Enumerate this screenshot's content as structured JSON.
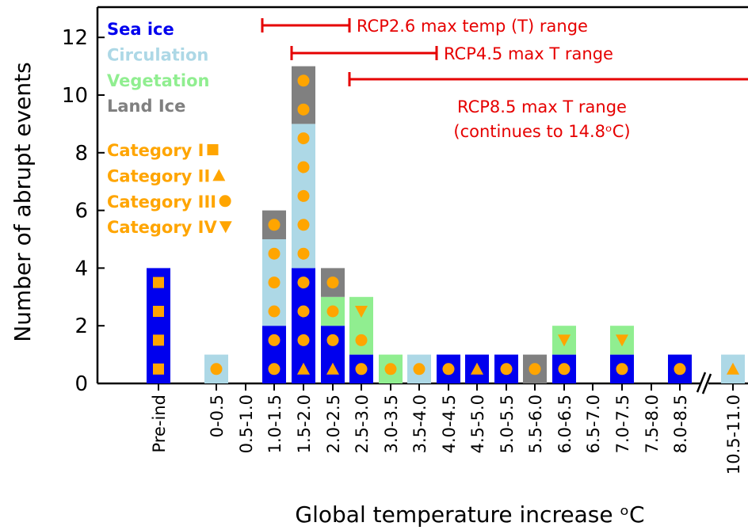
{
  "chart_data": {
    "type": "bar",
    "stacked": true,
    "xlabel": "Global temperature increase ᵒC",
    "ylabel": "Number of abrupt events",
    "ylim": [
      0,
      13
    ],
    "yticks": [
      0,
      2,
      4,
      6,
      8,
      10,
      12
    ],
    "categories": [
      "Pre-ind",
      "0-0.5",
      "0.5-1.0",
      "1.0-1.5",
      "1.5-2.0",
      "2.0-2.5",
      "2.5-3.0",
      "3.0-3.5",
      "3.5-4.0",
      "4.0-4.5",
      "4.5-5.0",
      "5.0-5.5",
      "5.5-6.0",
      "6.0-6.5",
      "6.5-7.0",
      "7.0-7.5",
      "7.5-8.0",
      "8.0-8.5",
      "10.5-11.0"
    ],
    "series": [
      {
        "name": "Sea ice",
        "color": "#0000ee",
        "values": [
          4,
          0,
          0,
          2,
          4,
          2,
          1,
          0,
          0,
          1,
          1,
          1,
          0,
          1,
          0,
          1,
          0,
          1,
          0
        ]
      },
      {
        "name": "Circulation",
        "color": "#add8e6",
        "values": [
          0,
          1,
          0,
          3,
          5,
          0,
          0,
          0,
          1,
          0,
          0,
          0,
          0,
          0,
          0,
          0,
          0,
          0,
          1
        ]
      },
      {
        "name": "Vegetation",
        "color": "#90ee90",
        "values": [
          0,
          0,
          0,
          0,
          0,
          1,
          2,
          1,
          0,
          0,
          0,
          0,
          0,
          1,
          0,
          1,
          0,
          0,
          0
        ]
      },
      {
        "name": "Land Ice",
        "color": "#808080",
        "values": [
          0,
          0,
          0,
          1,
          2,
          1,
          0,
          0,
          0,
          0,
          0,
          0,
          1,
          0,
          0,
          0,
          0,
          0,
          0
        ]
      }
    ],
    "marker_categories": [
      {
        "label": "Category I",
        "symbol": "square"
      },
      {
        "label": "Category II",
        "symbol": "triangle-up"
      },
      {
        "label": "Category III",
        "symbol": "circle"
      },
      {
        "label": "Category IV",
        "symbol": "triangle-down"
      }
    ],
    "markers": [
      [
        "square",
        "square",
        "square",
        "square"
      ],
      [
        "circle"
      ],
      [],
      [
        "circle",
        "circle",
        "circle",
        "circle",
        "circle",
        "circle"
      ],
      [
        "triangle-up",
        "circle",
        "circle",
        "circle",
        "circle",
        "circle",
        "circle",
        "circle",
        "circle",
        "circle",
        "circle"
      ],
      [
        "triangle-up",
        "circle",
        "circle",
        "circle"
      ],
      [
        "circle",
        "circle",
        "triangle-down"
      ],
      [
        "circle"
      ],
      [
        "circle"
      ],
      [
        "circle"
      ],
      [
        "triangle-up"
      ],
      [
        "circle"
      ],
      [
        "circle"
      ],
      [
        "circle",
        "triangle-down"
      ],
      [],
      [
        "circle",
        "triangle-down"
      ],
      [],
      [
        "circle"
      ],
      [
        "triangle-up"
      ]
    ],
    "marker_color": "#ffa500",
    "ranges": [
      {
        "label": "RCP2.6 max temp (T) range",
        "from": "1.0-1.5",
        "to": "2.5-3.0"
      },
      {
        "label": "RCP4.5 max T range",
        "from": "1.5-2.0",
        "to": "4.0-4.5"
      },
      {
        "label": "RCP8.5 max T range",
        "label2": "(continues to 14.8ᵒC)",
        "from": "2.5-3.0",
        "to": "beyond"
      }
    ],
    "range_color": "#e60000"
  }
}
